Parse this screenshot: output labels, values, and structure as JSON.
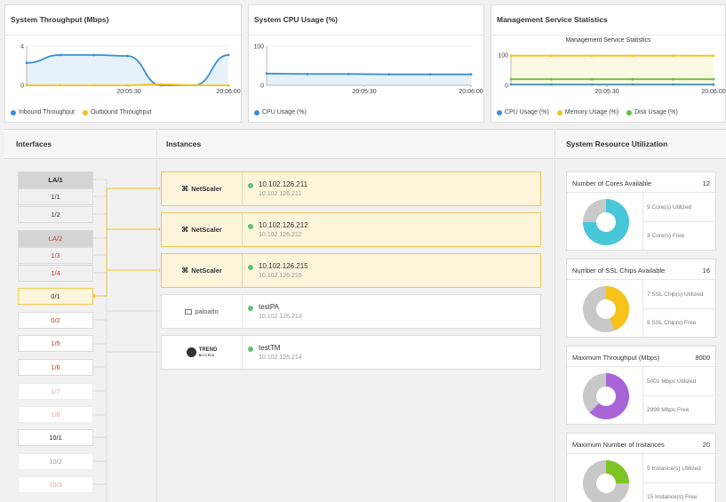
{
  "charts": {
    "throughput": {
      "title": "System Throughput (Mbps)",
      "legend": [
        {
          "label": "Inbound Throughput",
          "color": "#3a8fd6"
        },
        {
          "label": "Outbound Throughput",
          "color": "#f2c318"
        }
      ],
      "chart_data": {
        "type": "area",
        "x_ticks": [
          "20:05:30",
          "20:06:00"
        ],
        "ylim": [
          0,
          4
        ],
        "y_ticks": [
          "4",
          "0"
        ],
        "series": [
          {
            "name": "Inbound Throughput",
            "values": [
              2.3,
              3.1,
              3.1,
              3.0,
              0.0,
              0.0,
              3.1
            ]
          },
          {
            "name": "Outbound Throughput",
            "values": [
              0,
              0,
              0,
              0,
              0.1,
              0,
              0
            ]
          }
        ]
      }
    },
    "cpu": {
      "title": "System CPU Usage (%)",
      "legend": [
        {
          "label": "CPU Usage (%)",
          "color": "#3a8fd6"
        }
      ],
      "chart_data": {
        "type": "line",
        "x_ticks": [
          "20:05:30",
          "20:06:00"
        ],
        "ylim": [
          0,
          100
        ],
        "y_ticks": [
          "100",
          "0"
        ],
        "series": [
          {
            "name": "CPU Usage (%)",
            "values": [
              30,
              29,
              29,
              28,
              28,
              28
            ]
          }
        ]
      }
    },
    "mgmt": {
      "title": "Management Service Statistics",
      "inner_title": "Management Service Statistics",
      "legend": [
        {
          "label": "CPU Usage (%)",
          "color": "#3a8fd6"
        },
        {
          "label": "Memory Usage (%)",
          "color": "#f2c318"
        },
        {
          "label": "Disk Usage (%)",
          "color": "#6abf40"
        }
      ],
      "chart_data": {
        "type": "line",
        "x_ticks": [
          "20:05:30",
          "20:06:00"
        ],
        "ylim": [
          0,
          100
        ],
        "y_ticks": [
          "100",
          "0"
        ],
        "series": [
          {
            "name": "CPU Usage (%)",
            "values": [
              3,
              3,
              3,
              3,
              3,
              3
            ]
          },
          {
            "name": "Memory Usage (%)",
            "values": [
              98,
              98,
              98,
              98,
              98,
              98
            ]
          },
          {
            "name": "Disk Usage (%)",
            "values": [
              20,
              20,
              20,
              20,
              20,
              20
            ]
          }
        ]
      }
    }
  },
  "sections": {
    "interfaces": "Interfaces",
    "instances": "Instances",
    "resources": "System Resource Utilization"
  },
  "interfaces": [
    "LA/1",
    "1/1",
    "1/2",
    "LA/2",
    "1/3",
    "1/4",
    "0/1",
    "0/2",
    "1/5",
    "1/6",
    "1/7",
    "1/8",
    "10/1",
    "10/2",
    "10/3"
  ],
  "instances": [
    {
      "logo": "NetScaler",
      "name": "10.102.126.211",
      "ip": "10.102.126.211"
    },
    {
      "logo": "NetScaler",
      "name": "10.102.126.212",
      "ip": "10.102.126.212"
    },
    {
      "logo": "NetScaler",
      "name": "10.102.126.215",
      "ip": "10.102.126.215"
    },
    {
      "logo": "paloalto",
      "name": "testPA",
      "ip": "10.102.126.213"
    },
    {
      "logo": "TREND",
      "logo_sub": "MICRO",
      "name": "testTM",
      "ip": "10.102.126.214"
    }
  ],
  "resources": [
    {
      "title": "Number of Cores Available",
      "value": "12",
      "used": 9,
      "total": 12,
      "color": "#47c7d8",
      "used_label": "9 Core(s) Utilized",
      "free_label": "3 Core(s) Free"
    },
    {
      "title": "Number of SSL Chips Available",
      "value": "16",
      "used": 7,
      "total": 16,
      "color": "#f7c21a",
      "used_label": "7 SSL Chip(s) Utilized",
      "free_label": "9 SSL Chip(s) Free"
    },
    {
      "title": "Maximum Throughput (Mbps)",
      "value": "8000",
      "used": 5001,
      "total": 8000,
      "color": "#a865d8",
      "used_label": "5001 Mbps Utilized",
      "free_label": "2999 Mbps Free"
    },
    {
      "title": "Maximum Number of Instances",
      "value": "20",
      "used": 5,
      "total": 20,
      "color": "#7cc421",
      "used_label": "5 Instance(s) Utilized",
      "free_label": "15 Instance(s) Free"
    }
  ]
}
